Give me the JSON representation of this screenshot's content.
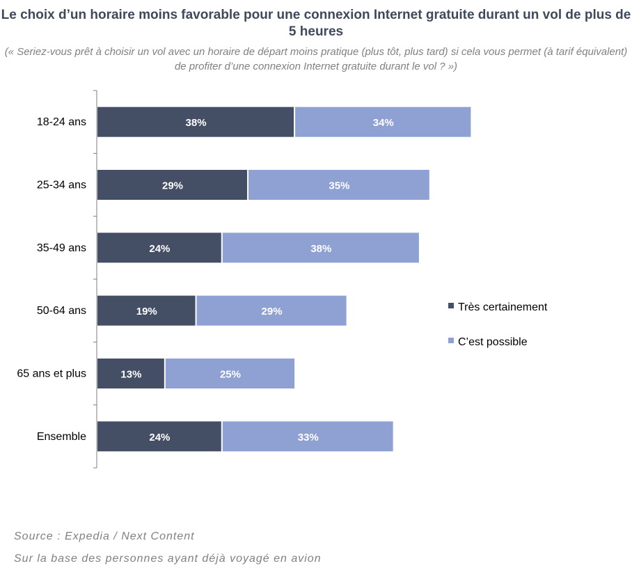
{
  "chart_data": {
    "type": "bar",
    "orientation": "horizontal",
    "stacked": true,
    "title": "Le choix d’un horaire moins favorable pour une connexion Internet gratuite durant un vol de plus de 5 heures",
    "subtitle": "(« Seriez-vous prêt à choisir un vol avec un horaire de départ moins pratique (plus tôt, plus tard) si cela vous permet (à tarif équivalent) de profiter d’une connexion Internet gratuite durant le vol ? »)",
    "categories": [
      "18-24 ans",
      "25-34 ans",
      "35-49 ans",
      "50-64 ans",
      "65 ans et plus",
      "Ensemble"
    ],
    "series": [
      {
        "name": "Très certainement",
        "values": [
          38,
          29,
          24,
          19,
          13,
          24
        ],
        "color": "#444f66"
      },
      {
        "name": "C’est possible",
        "values": [
          34,
          35,
          38,
          29,
          25,
          33
        ],
        "color": "#8fa1d3"
      }
    ],
    "value_suffix": "%",
    "xlim": [
      0,
      100
    ],
    "legend_position": "right",
    "grid": false
  },
  "footer": {
    "source": "Source : Expedia / Next Content",
    "note": "Sur la base des personnes ayant déjà voyagé en avion"
  }
}
